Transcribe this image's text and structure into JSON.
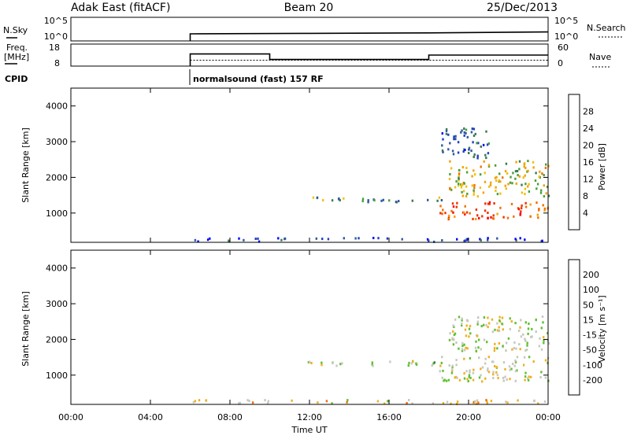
{
  "header": {
    "station": "Adak East (fitACF)",
    "beam": "Beam 20",
    "date": "25/Dec/2013"
  },
  "noise_panel": {
    "left_label": "N.Sky",
    "left_ticks": [
      "10^5",
      "10^0"
    ],
    "right_label": "N.Search",
    "right_ticks": [
      "10^5",
      "10^0"
    ]
  },
  "freq_panel": {
    "left_label_1": "Freq.",
    "left_label_2": "[MHz]",
    "left_ticks": [
      "18",
      "8"
    ],
    "right_label": "Nave",
    "right_ticks": [
      "60",
      "0"
    ]
  },
  "cpid": {
    "label": "CPID",
    "program": "normalsound (fast) 157 RF"
  },
  "colors": {
    "power": [
      "#0000ff",
      "#2040c0",
      "#2e5a9e",
      "#3c7a50",
      "#4aa03c",
      "#f0c010",
      "#f5a000",
      "#f07000",
      "#f03000",
      "#ff0000"
    ],
    "velocity": [
      "#2040c0",
      "#3c7a50",
      "#60c030",
      "#c8c8c0",
      "#f0b020",
      "#f07010",
      "#ff1000"
    ],
    "trace": "#000000"
  },
  "chart_data": [
    {
      "type": "line",
      "title": "N.Sky / N.Search",
      "x": [
        "06:00",
        "12:00",
        "18:00",
        "24:00"
      ],
      "series": [
        {
          "name": "N.Sky",
          "values": [
            1.5,
            1.6,
            1.7,
            1.9
          ]
        },
        {
          "name": "N.Search",
          "values": [
            1.5,
            1.6,
            1.7,
            1.9
          ]
        }
      ],
      "ylim_log10": [
        0,
        5
      ]
    },
    {
      "type": "line",
      "title": "Freq. / Nave",
      "x": [
        "06:00",
        "10:00",
        "10:00",
        "18:00",
        "18:00",
        "24:00"
      ],
      "series": [
        {
          "name": "Freq.",
          "values": [
            13.5,
            13.5,
            11.0,
            11.0,
            13.0,
            13.0
          ]
        },
        {
          "name": "Nave",
          "values": [
            16,
            16,
            16,
            16,
            16,
            16
          ]
        }
      ],
      "ylim_freq": [
        8,
        18
      ],
      "ylim_nave": [
        0,
        60
      ]
    },
    {
      "type": "heatmap",
      "title": "Power [dB]",
      "xlabel": "",
      "ylabel": "Slant Range [km]",
      "xlim_hours": [
        0,
        24
      ],
      "ylim_km": [
        180,
        4500
      ],
      "yticks": [
        1000,
        2000,
        3000,
        4000
      ],
      "colorbar_label": "Power [dB]",
      "colorbar_ticks": [
        "4",
        "8",
        "12",
        "16",
        "20",
        "24",
        "28"
      ],
      "regions": [
        {
          "hour_start": 11.8,
          "hour_end": 18.7,
          "range_center_km": 1400,
          "range_width_km": 150,
          "value_db": 12
        },
        {
          "hour_start": 18.5,
          "hour_end": 24.0,
          "range_center_km": 1100,
          "range_width_km": 500,
          "value_db": 26
        },
        {
          "hour_start": 19.0,
          "hour_end": 24.0,
          "range_center_km": 2000,
          "range_width_km": 1000,
          "value_db": 18
        },
        {
          "hour_start": 18.6,
          "hour_end": 21.0,
          "range_center_km": 3000,
          "range_width_km": 900,
          "value_db": 8
        },
        {
          "hour_start": 6.0,
          "hour_end": 24.0,
          "range_center_km": 260,
          "range_width_km": 150,
          "value_db": 6
        }
      ]
    },
    {
      "type": "heatmap",
      "title": "Velocity",
      "xlabel": "Time UT",
      "ylabel": "Slant Range [km]",
      "xlim_hours": [
        0,
        24
      ],
      "ylim_km": [
        180,
        4500
      ],
      "yticks": [
        1000,
        2000,
        3000,
        4000
      ],
      "xticks": [
        "00:00",
        "04:00",
        "08:00",
        "12:00",
        "16:00",
        "20:00",
        "00:00"
      ],
      "colorbar_label": "Velocity [m s⁻¹]",
      "colorbar_ticks": [
        "200",
        "100",
        "50",
        "15",
        "-15",
        "-50",
        "-100",
        "-200"
      ],
      "regions": [
        {
          "hour_start": 11.8,
          "hour_end": 18.7,
          "range_center_km": 1350,
          "range_width_km": 150,
          "value_ms": 30
        },
        {
          "hour_start": 18.5,
          "hour_end": 24.0,
          "range_center_km": 1200,
          "range_width_km": 700,
          "value_ms": 0
        },
        {
          "hour_start": 19.0,
          "hour_end": 24.0,
          "range_center_km": 2200,
          "range_width_km": 1000,
          "value_ms": 0
        },
        {
          "hour_start": 6.0,
          "hour_end": 24.0,
          "range_center_km": 260,
          "range_width_km": 150,
          "value_ms": -40
        }
      ]
    }
  ]
}
